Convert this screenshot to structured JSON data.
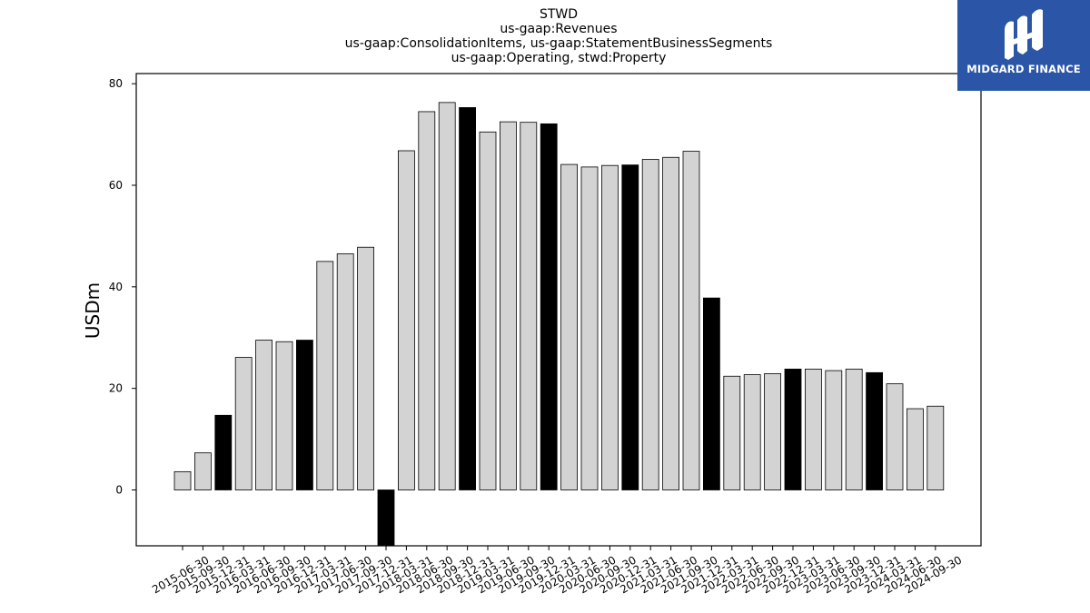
{
  "chart_data": {
    "type": "bar",
    "title_lines": [
      "STWD",
      "us-gaap:Revenues",
      "us-gaap:ConsolidationItems, us-gaap:StatementBusinessSegments",
      "us-gaap:Operating, stwd:Property"
    ],
    "ylabel": "USDm",
    "xlabel": "",
    "ylim": [
      -11,
      82
    ],
    "yticks": [
      0,
      20,
      40,
      60,
      80
    ],
    "categories": [
      "2015-06-30",
      "2015-09-30",
      "2015-12-31",
      "2016-03-31",
      "2016-06-30",
      "2016-09-30",
      "2016-12-31",
      "2017-03-31",
      "2017-06-30",
      "2017-09-30",
      "2017-12-31",
      "2018-03-31",
      "2018-06-30",
      "2018-09-30",
      "2018-12-31",
      "2019-03-31",
      "2019-06-30",
      "2019-09-30",
      "2019-12-31",
      "2020-03-31",
      "2020-06-30",
      "2020-09-30",
      "2020-12-31",
      "2021-03-31",
      "2021-06-30",
      "2021-09-30",
      "2021-12-31",
      "2022-03-31",
      "2022-06-30",
      "2022-09-30",
      "2022-12-31",
      "2023-03-31",
      "2023-06-30",
      "2023-09-30",
      "2023-12-31",
      "2024-03-31",
      "2024-06-30",
      "2024-09-30"
    ],
    "values": [
      3.6,
      7.3,
      14.7,
      26.1,
      29.5,
      29.2,
      29.5,
      45.0,
      46.5,
      47.8,
      -13.0,
      66.8,
      74.5,
      76.3,
      75.3,
      70.5,
      72.5,
      72.4,
      72.1,
      64.1,
      63.6,
      63.9,
      64.0,
      65.1,
      65.5,
      66.7,
      37.8,
      22.4,
      22.7,
      22.9,
      23.8,
      23.8,
      23.5,
      23.8,
      23.1,
      20.9,
      16.0,
      16.5
    ],
    "bar_colors": [
      "#d3d3d3",
      "#d3d3d3",
      "#000000",
      "#d3d3d3",
      "#d3d3d3",
      "#d3d3d3",
      "#000000",
      "#d3d3d3",
      "#d3d3d3",
      "#d3d3d3",
      "#000000",
      "#d3d3d3",
      "#d3d3d3",
      "#d3d3d3",
      "#000000",
      "#d3d3d3",
      "#d3d3d3",
      "#d3d3d3",
      "#000000",
      "#d3d3d3",
      "#d3d3d3",
      "#d3d3d3",
      "#000000",
      "#d3d3d3",
      "#d3d3d3",
      "#d3d3d3",
      "#000000",
      "#d3d3d3",
      "#d3d3d3",
      "#d3d3d3",
      "#000000",
      "#d3d3d3",
      "#d3d3d3",
      "#d3d3d3",
      "#000000",
      "#d3d3d3",
      "#d3d3d3",
      "#d3d3d3"
    ],
    "grid": false,
    "legend": "none"
  },
  "logo": {
    "text": "MIDGARD FINANCE",
    "background": "#2b56a8",
    "icon": "midgard-logo-icon"
  }
}
